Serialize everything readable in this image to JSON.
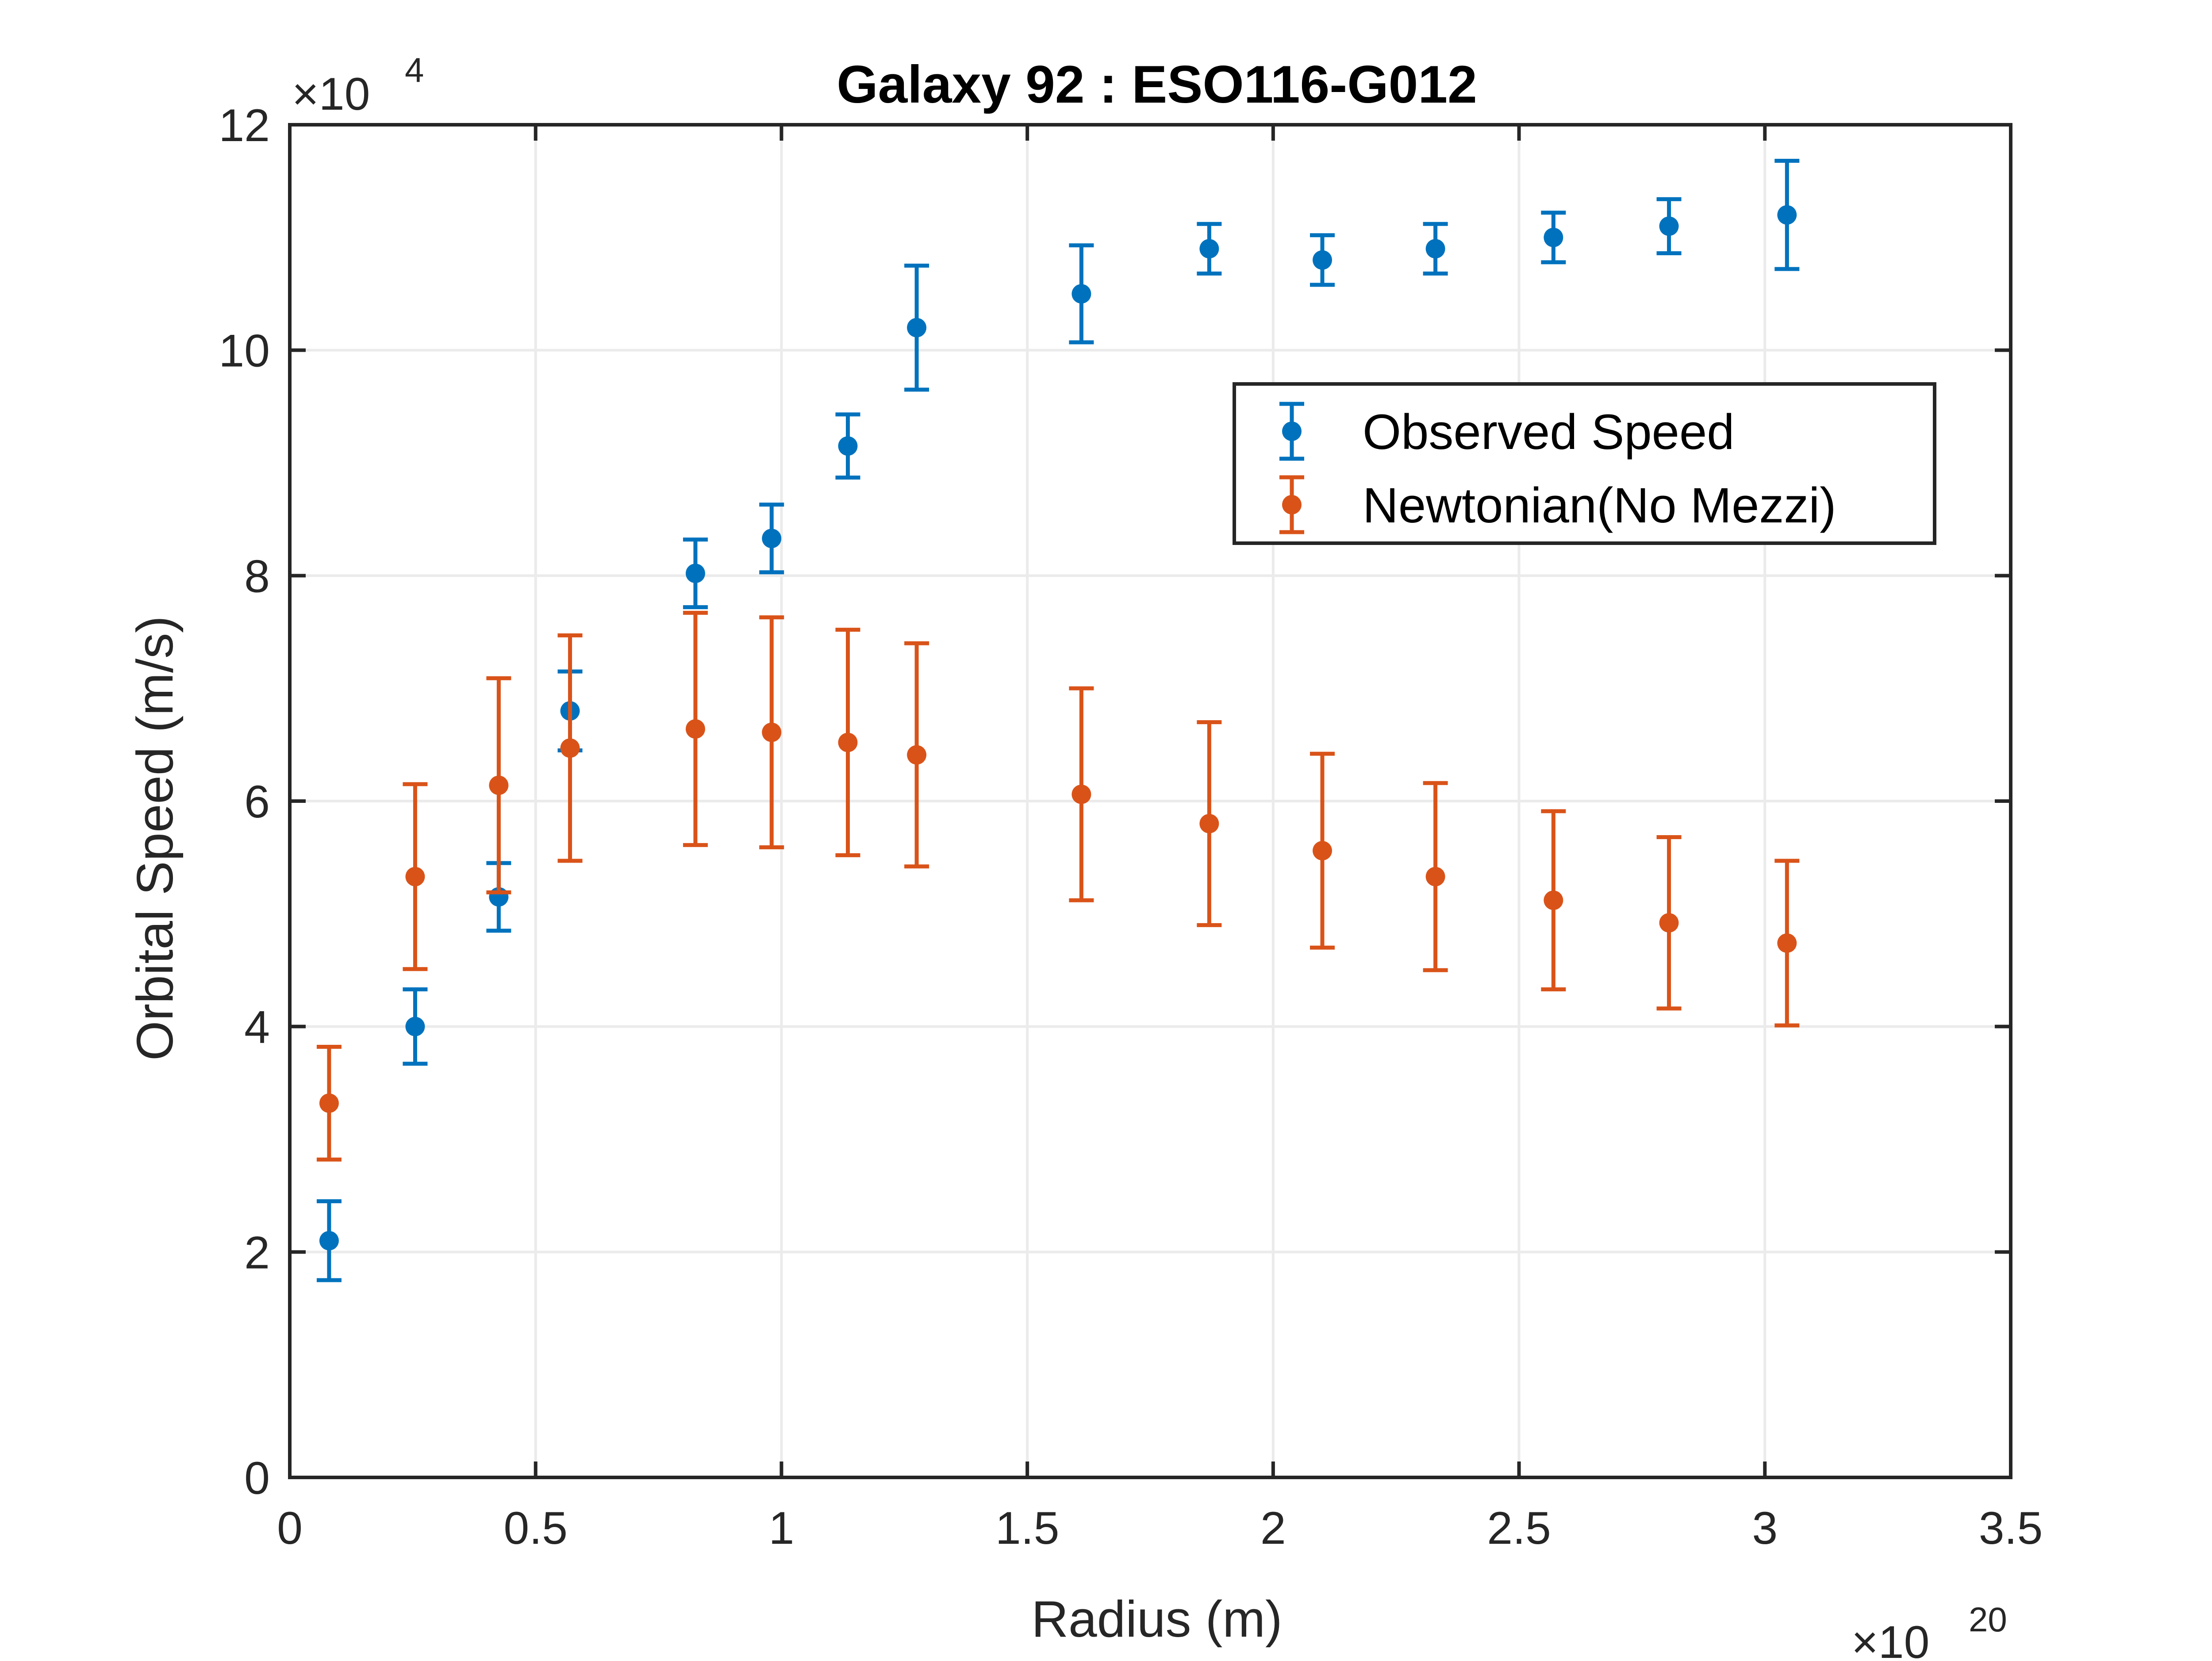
{
  "chart_data": {
    "type": "scatter",
    "title": "Galaxy 92 : ESO116-G012",
    "xlabel": "Radius (m)",
    "ylabel": "Orbital Speed (m/s)",
    "x_exponent_base": "×10",
    "x_exponent_power": "20",
    "y_exponent_base": "×10",
    "y_exponent_power": "4",
    "x_scale": 1e+20,
    "y_scale": 10000,
    "xlim": [
      0,
      3.5
    ],
    "ylim": [
      0,
      12
    ],
    "x_ticks": [
      0,
      0.5,
      1,
      1.5,
      2,
      2.5,
      3,
      3.5
    ],
    "x_tick_labels": [
      "0",
      "0.5",
      "1",
      "1.5",
      "2",
      "2.5",
      "3",
      "3.5"
    ],
    "y_ticks": [
      0,
      2,
      4,
      6,
      8,
      10,
      12
    ],
    "y_tick_labels": [
      "0",
      "2",
      "4",
      "6",
      "8",
      "10",
      "12"
    ],
    "grid": true,
    "legend_position": "upper-right-inside",
    "series": [
      {
        "name": "Observed Speed",
        "color": "#0072BD",
        "points": [
          {
            "x": 0.08,
            "y": 2.1,
            "err": 0.35
          },
          {
            "x": 0.255,
            "y": 4.0,
            "err": 0.33
          },
          {
            "x": 0.425,
            "y": 5.15,
            "err": 0.3
          },
          {
            "x": 0.57,
            "y": 6.8,
            "err": 0.35
          },
          {
            "x": 0.825,
            "y": 8.02,
            "err": 0.3
          },
          {
            "x": 0.98,
            "y": 8.33,
            "err": 0.3
          },
          {
            "x": 1.135,
            "y": 9.15,
            "err": 0.28
          },
          {
            "x": 1.275,
            "y": 10.2,
            "err": 0.55
          },
          {
            "x": 1.61,
            "y": 10.5,
            "err": 0.43
          },
          {
            "x": 1.87,
            "y": 10.9,
            "err": 0.22
          },
          {
            "x": 2.1,
            "y": 10.8,
            "err": 0.22
          },
          {
            "x": 2.33,
            "y": 10.9,
            "err": 0.22
          },
          {
            "x": 2.57,
            "y": 11.0,
            "err": 0.22
          },
          {
            "x": 2.805,
            "y": 11.1,
            "err": 0.24
          },
          {
            "x": 3.045,
            "y": 11.2,
            "err": 0.48
          }
        ]
      },
      {
        "name": "Newtonian(No Mezzi)",
        "color": "#D95319",
        "points": [
          {
            "x": 0.08,
            "y": 3.32,
            "err": 0.5
          },
          {
            "x": 0.255,
            "y": 5.33,
            "err": 0.82
          },
          {
            "x": 0.425,
            "y": 6.14,
            "err": 0.95
          },
          {
            "x": 0.57,
            "y": 6.47,
            "err": 1.0
          },
          {
            "x": 0.825,
            "y": 6.64,
            "err": 1.03
          },
          {
            "x": 0.98,
            "y": 6.61,
            "err": 1.02
          },
          {
            "x": 1.135,
            "y": 6.52,
            "err": 1.0
          },
          {
            "x": 1.275,
            "y": 6.41,
            "err": 0.99
          },
          {
            "x": 1.61,
            "y": 6.06,
            "err": 0.94
          },
          {
            "x": 1.87,
            "y": 5.8,
            "err": 0.9
          },
          {
            "x": 2.1,
            "y": 5.56,
            "err": 0.86
          },
          {
            "x": 2.33,
            "y": 5.33,
            "err": 0.83
          },
          {
            "x": 2.57,
            "y": 5.12,
            "err": 0.79
          },
          {
            "x": 2.805,
            "y": 4.92,
            "err": 0.76
          },
          {
            "x": 3.045,
            "y": 4.74,
            "err": 0.73
          }
        ]
      }
    ]
  }
}
